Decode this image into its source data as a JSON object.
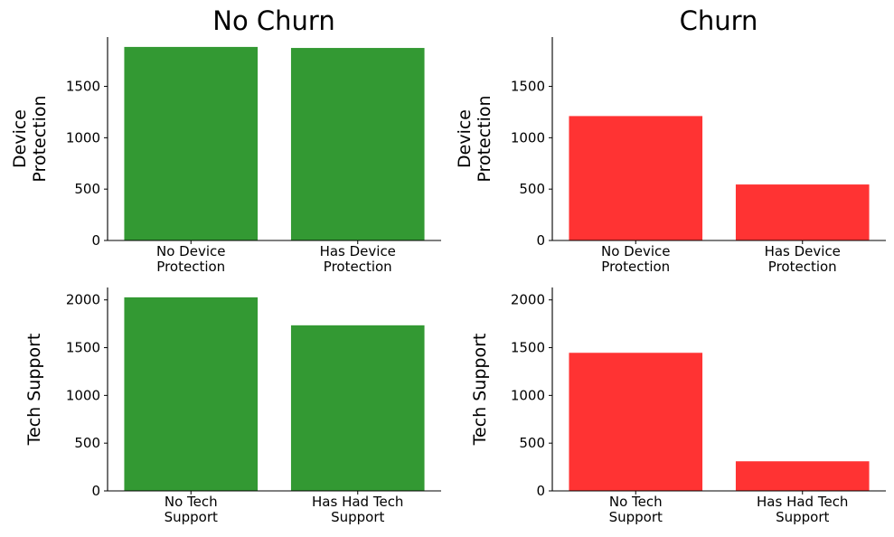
{
  "colors": {
    "no_churn": "#339933",
    "churn": "#ff3333"
  },
  "column_titles": [
    "No Churn",
    "Churn"
  ],
  "chart_data": [
    {
      "type": "bar",
      "title": "No Churn",
      "xlabel": "",
      "ylabel": "Device\nProtection",
      "categories": [
        "No Device\nProtection",
        "Has Device\nProtection"
      ],
      "values": [
        1884,
        1874
      ],
      "ylim": [
        0,
        1980
      ],
      "yticks": [
        0,
        500,
        1000,
        1500
      ],
      "color": "#339933",
      "grid": false
    },
    {
      "type": "bar",
      "title": "Churn",
      "xlabel": "",
      "ylabel": "Device\nProtection",
      "categories": [
        "No Device\nProtection",
        "Has Device\nProtection"
      ],
      "values": [
        1211,
        545
      ],
      "ylim": [
        0,
        1980
      ],
      "yticks": [
        0,
        500,
        1000,
        1500
      ],
      "color": "#ff3333",
      "grid": false
    },
    {
      "type": "bar",
      "title": "",
      "xlabel": "",
      "ylabel": "Tech Support",
      "categories": [
        "No Tech\nSupport",
        "Has Had Tech\nSupport"
      ],
      "values": [
        2027,
        1734
      ],
      "ylim": [
        0,
        2130
      ],
      "yticks": [
        0,
        500,
        1000,
        1500,
        2000
      ],
      "color": "#339933",
      "grid": false
    },
    {
      "type": "bar",
      "title": "",
      "xlabel": "",
      "ylabel": "Tech Support",
      "categories": [
        "No Tech\nSupport",
        "Has Had Tech\nSupport"
      ],
      "values": [
        1446,
        310
      ],
      "ylim": [
        0,
        2130
      ],
      "yticks": [
        0,
        500,
        1000,
        1500,
        2000
      ],
      "color": "#ff3333",
      "grid": false
    }
  ]
}
